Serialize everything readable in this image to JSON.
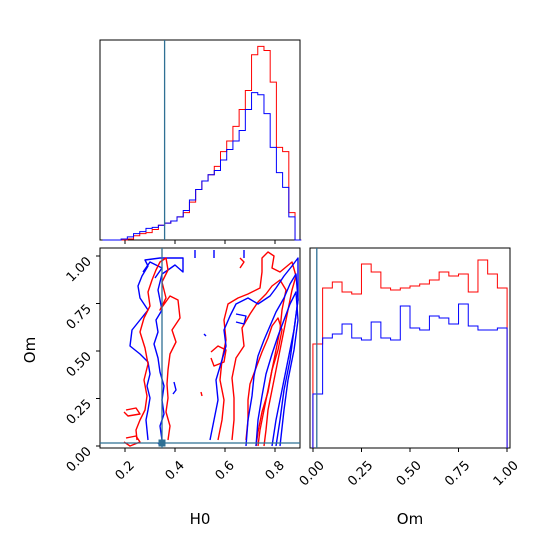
{
  "chart_data": [
    {
      "panel": "H0 marginal",
      "type": "histogram",
      "xlim": [
        0.09,
        0.895
      ],
      "truth": 0.35,
      "xtick_values": [
        0.2,
        0.4,
        0.6,
        0.8
      ],
      "series": [
        {
          "color": "#ff0000",
          "edges": [
            0.1,
            0.125,
            0.15,
            0.175,
            0.2,
            0.225,
            0.25,
            0.275,
            0.3,
            0.325,
            0.35,
            0.375,
            0.4,
            0.425,
            0.45,
            0.475,
            0.5,
            0.525,
            0.55,
            0.575,
            0.6,
            0.625,
            0.65,
            0.675,
            0.7,
            0.725,
            0.75,
            0.775,
            0.8,
            0.825,
            0.85,
            0.875,
            0.9
          ],
          "counts": [
            0,
            0,
            0,
            0,
            0.5,
            2,
            3,
            3.5,
            5,
            7,
            8,
            9,
            11,
            13,
            18,
            24,
            28,
            31,
            35,
            42,
            47,
            54,
            62,
            71,
            88,
            92,
            90,
            75,
            44,
            42,
            13,
            0
          ]
        },
        {
          "color": "#0000ff",
          "edges": [
            0.1,
            0.125,
            0.15,
            0.175,
            0.2,
            0.225,
            0.25,
            0.275,
            0.3,
            0.325,
            0.35,
            0.375,
            0.4,
            0.425,
            0.45,
            0.475,
            0.5,
            0.525,
            0.55,
            0.575,
            0.6,
            0.625,
            0.65,
            0.675,
            0.7,
            0.725,
            0.75,
            0.775,
            0.8,
            0.825,
            0.85,
            0.875,
            0.9
          ],
          "counts": [
            0,
            0,
            0,
            0.5,
            1.5,
            3,
            4,
            5.5,
            6,
            7,
            8,
            9,
            11,
            14,
            19,
            24,
            28,
            31,
            33,
            38,
            43,
            47,
            52,
            62,
            70,
            69,
            60,
            44,
            32,
            25,
            11,
            0
          ]
        }
      ]
    },
    {
      "panel": "Om vs H0 joint",
      "type": "contour",
      "xlabel": "H0",
      "ylabel": "Om",
      "xlim": [
        0.09,
        0.895
      ],
      "ylim": [
        0.0,
        1.05
      ],
      "xtick_labels": [
        "0.2",
        "0.4",
        "0.6",
        "0.8"
      ],
      "ytick_labels": [
        "0.00",
        "0.25",
        "0.50",
        "0.75",
        "1.00"
      ],
      "truth_point": [
        0.35,
        0.02
      ]
    },
    {
      "panel": "Om marginal",
      "type": "histogram",
      "xlabel": "Om",
      "xlim": [
        -0.015,
        1.015
      ],
      "truth": 0.02,
      "xtick_labels": [
        "0.00",
        "0.25",
        "0.50",
        "0.75",
        "1.00"
      ],
      "series": [
        {
          "color": "#ff0000",
          "edges": [
            0.0,
            0.05,
            0.1,
            0.15,
            0.2,
            0.25,
            0.3,
            0.35,
            0.4,
            0.45,
            0.5,
            0.55,
            0.6,
            0.65,
            0.7,
            0.75,
            0.8,
            0.85,
            0.9,
            0.95,
            1.0
          ],
          "counts": [
            0.52,
            0.8,
            0.83,
            0.78,
            0.77,
            0.92,
            0.88,
            0.8,
            0.79,
            0.8,
            0.81,
            0.82,
            0.84,
            0.88,
            0.86,
            0.87,
            0.78,
            0.94,
            0.87,
            0.8
          ]
        },
        {
          "color": "#0000ff",
          "edges": [
            0.0,
            0.05,
            0.1,
            0.15,
            0.2,
            0.25,
            0.3,
            0.35,
            0.4,
            0.45,
            0.5,
            0.55,
            0.6,
            0.65,
            0.7,
            0.75,
            0.8,
            0.85,
            0.9,
            0.95,
            1.0
          ],
          "counts": [
            0.27,
            0.55,
            0.57,
            0.62,
            0.55,
            0.54,
            0.63,
            0.55,
            0.54,
            0.71,
            0.6,
            0.59,
            0.66,
            0.65,
            0.62,
            0.72,
            0.61,
            0.59,
            0.59,
            0.6
          ]
        }
      ]
    }
  ]
}
